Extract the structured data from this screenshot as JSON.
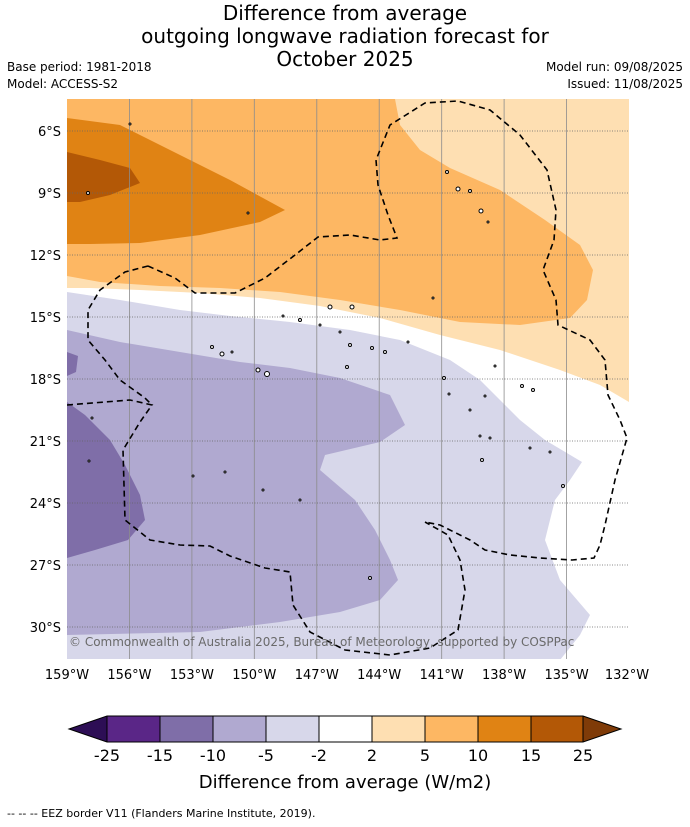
{
  "title": {
    "line1": "Difference from average",
    "line2": "outgoing longwave radiation forecast for",
    "line3": "October 2025"
  },
  "meta": {
    "base_period": "Base period: 1981-2018",
    "model": "Model: ACCESS-S2",
    "model_run": "Model run: 09/08/2025",
    "issued": "Issued: 11/08/2025"
  },
  "map": {
    "lon_labels": [
      "159°W",
      "156°W",
      "153°W",
      "150°W",
      "147°W",
      "144°W",
      "141°W",
      "138°W",
      "135°W",
      "132°W"
    ],
    "lat_labels": [
      "6°S",
      "9°S",
      "12°S",
      "15°S",
      "18°S",
      "21°S",
      "24°S",
      "27°S",
      "30°S"
    ],
    "copyright": "© Commonwealth of Australia 2025, Bureau of Meteorology, supported by COSPPac"
  },
  "legend": {
    "ticks": [
      "-25",
      "-15",
      "-10",
      "-5",
      "-2",
      "2",
      "5",
      "10",
      "15",
      "25"
    ],
    "colors": [
      "#2d0e55",
      "#5a2687",
      "#7f6ea8",
      "#b0a9d0",
      "#d7d7ea",
      "#ffffff",
      "#fedfb2",
      "#fdb763",
      "#e08314",
      "#b35806",
      "#7f3b08"
    ],
    "label": "Difference from average (W/m2)"
  },
  "footnote": "-- -- -- EEZ border V11 (Flanders Marine Institute, 2019)."
}
